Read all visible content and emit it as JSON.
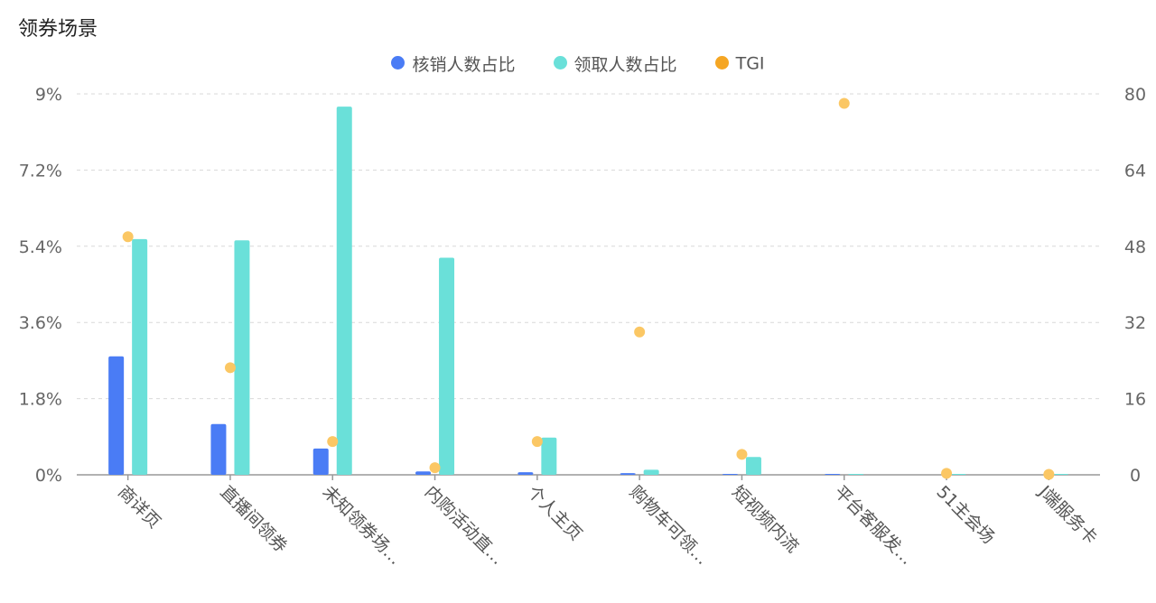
{
  "title": "领券场景",
  "colors": {
    "verified": "#4a7cf5",
    "claimed": "#6ae0d9",
    "tgi": "#f5a623",
    "tgi_point": "#fbc764",
    "grid": "#d9d9d9",
    "axis": "#999999"
  },
  "chart_data": {
    "type": "bar",
    "title": "领券场景",
    "categories": [
      "商详页",
      "直播间领券",
      "未知领券场…",
      "内购活动直…",
      "个人主页",
      "购物车可领…",
      "短视频内流",
      "平台客服发…",
      "51主会场",
      "J端服务卡"
    ],
    "series": [
      {
        "name": "核销人数占比",
        "type": "bar",
        "axis": "left",
        "values": [
          2.8,
          1.2,
          0.62,
          0.08,
          0.06,
          0.04,
          0.02,
          0.01,
          0.0,
          0.0
        ]
      },
      {
        "name": "领取人数占比",
        "type": "bar",
        "axis": "left",
        "values": [
          5.57,
          5.54,
          8.7,
          5.13,
          0.88,
          0.12,
          0.42,
          0.01,
          0.01,
          0.02
        ]
      },
      {
        "name": "TGI",
        "type": "scatter",
        "axis": "right",
        "values": [
          50,
          22.5,
          7,
          1.5,
          7,
          30,
          4.3,
          78,
          0.3,
          0.1
        ]
      }
    ],
    "y_left": {
      "ticks": [
        "9%",
        "7.2%",
        "5.4%",
        "3.6%",
        "1.8%",
        "0%"
      ],
      "ylim": [
        0,
        9
      ],
      "unit": "%"
    },
    "y_right": {
      "ticks": [
        "80",
        "64",
        "48",
        "32",
        "16",
        "0"
      ],
      "ylim": [
        0,
        80
      ]
    },
    "grid": true,
    "legend_position": "top-center"
  }
}
